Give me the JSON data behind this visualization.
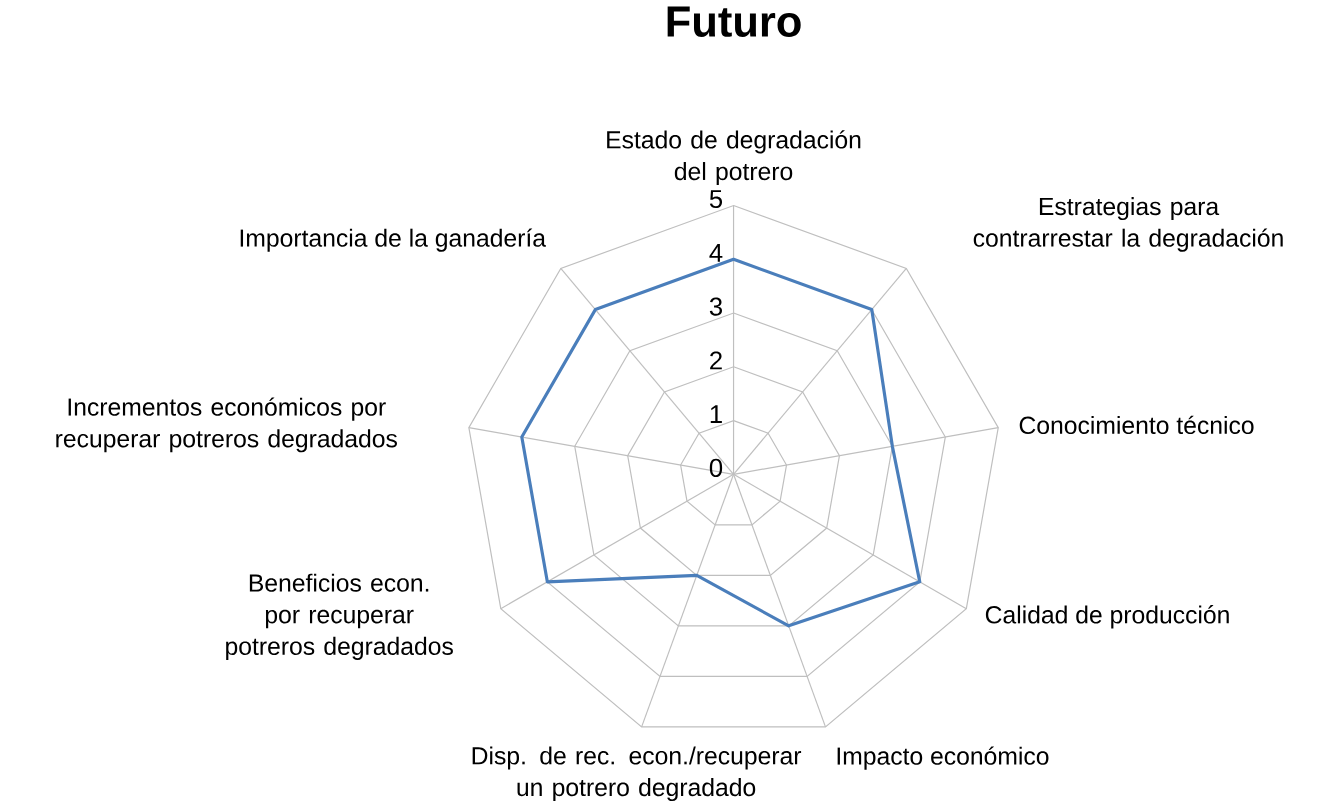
{
  "chart_data": {
    "type": "radar",
    "title": "Futuro",
    "categories": [
      "Estado de degradación del potrero",
      "Estrategias para contrarrestar la degradación",
      "Conocimiento técnico",
      "Calidad de producción",
      "Impacto económico",
      "Disp. de rec. econ./recuperar un potrero degradado",
      "Beneficios econ. por recuperar potreros degradados",
      "Incrementos económicos por recuperar potreros degradados",
      "Importancia de la ganadería"
    ],
    "series": [
      {
        "color": "#4a7ebb",
        "values": [
          4,
          4,
          3,
          4,
          3,
          2,
          4,
          4,
          4
        ]
      }
    ],
    "ylim": [
      0,
      5
    ],
    "yticks": [
      0,
      1,
      2,
      3,
      4,
      5
    ],
    "grid": true
  }
}
